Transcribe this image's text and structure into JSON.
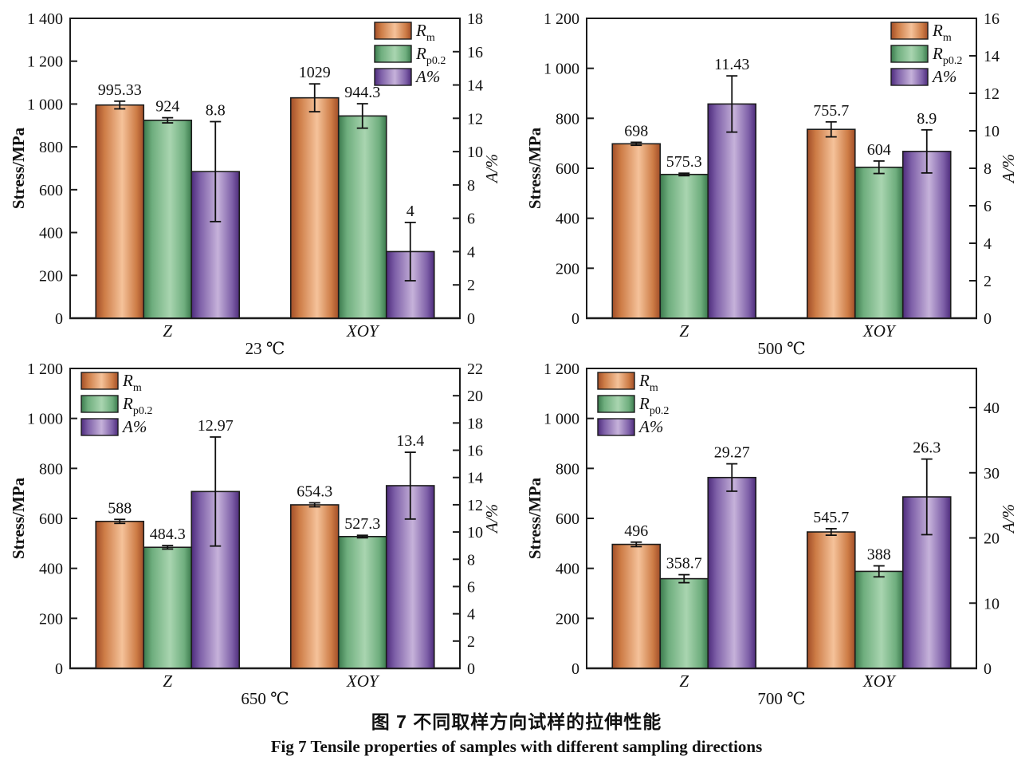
{
  "figure": {
    "caption_cn": "图 7  不同取样方向试样的拉伸性能",
    "caption_en": "Fig 7  Tensile properties of samples with different sampling directions"
  },
  "colors": {
    "axis": "#1c1c1c",
    "bar_outline": "#1c1c1c",
    "error_bar": "#111111",
    "orange": {
      "edge": "#a24e28",
      "mid": "#cd7c46",
      "light": "#f5c29a"
    },
    "green": {
      "edge": "#3b7a4d",
      "mid": "#6fae7e",
      "light": "#a9d5b0"
    },
    "purple": {
      "edge": "#4e2c7c",
      "mid": "#7e60a8",
      "light": "#c6b2da"
    }
  },
  "series_meta": [
    {
      "id": "rm",
      "legend_main": "R",
      "legend_sub": "m",
      "color_key": "orange"
    },
    {
      "id": "rp02",
      "legend_main": "R",
      "legend_sub": "p0.2",
      "color_key": "green"
    },
    {
      "id": "apct",
      "legend_main": "A%",
      "legend_sub": "",
      "color_key": "purple"
    }
  ],
  "chart_data": [
    {
      "type": "bar",
      "title": "23 ℃",
      "categories": [
        "Z",
        "XOY"
      ],
      "legend_pos": "top-right",
      "axis_left": {
        "label": "Stress/MPa",
        "min": 0,
        "max": 1400,
        "ticks": [
          0,
          200,
          400,
          600,
          800,
          1000,
          1200,
          1400
        ],
        "tick_labels": [
          "0",
          "200",
          "400",
          "600",
          "800",
          "1 000",
          "1 200",
          "1 400"
        ]
      },
      "axis_right": {
        "label": "A/%",
        "min": 0,
        "max": 18,
        "ticks": [
          0,
          2,
          4,
          6,
          8,
          10,
          12,
          14,
          16,
          18
        ],
        "tick_labels": [
          "0",
          "2",
          "4",
          "6",
          "8",
          "10",
          "12",
          "14",
          "16",
          "18"
        ]
      },
      "series": [
        {
          "id": "rm",
          "axis": "left",
          "values": [
            995.33,
            1029
          ],
          "errors": [
            18,
            65
          ],
          "value_labels": [
            "995.33",
            "1029"
          ]
        },
        {
          "id": "rp02",
          "axis": "left",
          "values": [
            924,
            944.3
          ],
          "errors": [
            12,
            57
          ],
          "value_labels": [
            "924",
            "944.3"
          ]
        },
        {
          "id": "apct",
          "axis": "right",
          "values": [
            8.8,
            4
          ],
          "errors": [
            3.0,
            1.75
          ],
          "value_labels": [
            "8.8",
            "4"
          ]
        }
      ]
    },
    {
      "type": "bar",
      "title": "500 ℃",
      "categories": [
        "Z",
        "XOY"
      ],
      "legend_pos": "top-right",
      "axis_left": {
        "label": "Stress/MPa",
        "min": 0,
        "max": 1200,
        "ticks": [
          0,
          200,
          400,
          600,
          800,
          1000,
          1200
        ],
        "tick_labels": [
          "0",
          "200",
          "400",
          "600",
          "800",
          "1 000",
          "1 200"
        ]
      },
      "axis_right": {
        "label": "A/%",
        "min": 0,
        "max": 16,
        "ticks": [
          0,
          2,
          4,
          6,
          8,
          10,
          12,
          14,
          16
        ],
        "tick_labels": [
          "0",
          "2",
          "4",
          "6",
          "8",
          "10",
          "12",
          "14",
          "16"
        ]
      },
      "series": [
        {
          "id": "rm",
          "axis": "left",
          "values": [
            698,
            755.7
          ],
          "errors": [
            6,
            30
          ],
          "value_labels": [
            "698",
            "755.7"
          ]
        },
        {
          "id": "rp02",
          "axis": "left",
          "values": [
            575.3,
            604
          ],
          "errors": [
            5,
            25
          ],
          "value_labels": [
            "575.3",
            "604"
          ]
        },
        {
          "id": "apct",
          "axis": "right",
          "values": [
            11.43,
            8.9
          ],
          "errors": [
            1.5,
            1.15
          ],
          "value_labels": [
            "11.43",
            "8.9"
          ]
        }
      ]
    },
    {
      "type": "bar",
      "title": "650 ℃",
      "categories": [
        "Z",
        "XOY"
      ],
      "legend_pos": "top-left",
      "axis_left": {
        "label": "Stress/MPa",
        "min": 0,
        "max": 1200,
        "ticks": [
          0,
          200,
          400,
          600,
          800,
          1000,
          1200
        ],
        "tick_labels": [
          "0",
          "200",
          "400",
          "600",
          "800",
          "1 000",
          "1 200"
        ]
      },
      "axis_right": {
        "label": "A/%",
        "min": 0,
        "max": 22,
        "ticks": [
          0,
          2,
          4,
          6,
          8,
          10,
          12,
          14,
          16,
          18,
          20,
          22
        ],
        "tick_labels": [
          "0",
          "2",
          "4",
          "6",
          "8",
          "10",
          "12",
          "14",
          "16",
          "18",
          "20",
          "22"
        ]
      },
      "series": [
        {
          "id": "rm",
          "axis": "left",
          "values": [
            588,
            654.3
          ],
          "errors": [
            8,
            8
          ],
          "value_labels": [
            "588",
            "654.3"
          ]
        },
        {
          "id": "rp02",
          "axis": "left",
          "values": [
            484.3,
            527.3
          ],
          "errors": [
            7,
            5
          ],
          "value_labels": [
            "484.3",
            "527.3"
          ]
        },
        {
          "id": "apct",
          "axis": "right",
          "values": [
            12.97,
            13.4
          ],
          "errors": [
            4.0,
            2.45
          ],
          "value_labels": [
            "12.97",
            "13.4"
          ]
        }
      ]
    },
    {
      "type": "bar",
      "title": "700 ℃",
      "categories": [
        "Z",
        "XOY"
      ],
      "legend_pos": "top-left",
      "axis_left": {
        "label": "Stress/MPa",
        "min": 0,
        "max": 1200,
        "ticks": [
          0,
          200,
          400,
          600,
          800,
          1000,
          1200
        ],
        "tick_labels": [
          "0",
          "200",
          "400",
          "600",
          "800",
          "1 000",
          "1 200"
        ]
      },
      "axis_right": {
        "label": "A/%",
        "min": 0,
        "max": 46,
        "ticks": [
          0,
          10,
          20,
          30,
          40
        ],
        "tick_labels": [
          "0",
          "10",
          "20",
          "30",
          "40"
        ]
      },
      "series": [
        {
          "id": "rm",
          "axis": "left",
          "values": [
            496,
            545.7
          ],
          "errors": [
            9,
            13
          ],
          "value_labels": [
            "496",
            "545.7"
          ]
        },
        {
          "id": "rp02",
          "axis": "left",
          "values": [
            358.7,
            388
          ],
          "errors": [
            16,
            22
          ],
          "value_labels": [
            "358.7",
            "388"
          ]
        },
        {
          "id": "apct",
          "axis": "right",
          "values": [
            29.27,
            26.3
          ],
          "errors": [
            2.1,
            5.8
          ],
          "value_labels": [
            "29.27",
            "26.3"
          ]
        }
      ]
    }
  ]
}
